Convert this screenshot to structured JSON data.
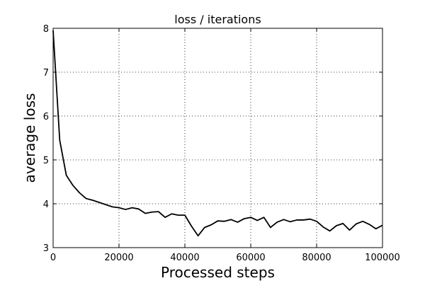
{
  "chart_data": {
    "type": "line",
    "title": "loss / iterations",
    "xlabel": "Processed steps",
    "ylabel": "average loss",
    "xlim": [
      0,
      100000
    ],
    "ylim": [
      3,
      8
    ],
    "xticks": [
      0,
      20000,
      40000,
      60000,
      80000,
      100000
    ],
    "xtick_labels": [
      "0",
      "20000",
      "40000",
      "60000",
      "80000",
      "100000"
    ],
    "yticks": [
      3,
      4,
      5,
      6,
      7,
      8
    ],
    "ytick_labels": [
      "3",
      "4",
      "5",
      "6",
      "7",
      "8"
    ],
    "grid": true,
    "line_color": "#000000",
    "series": [
      {
        "x": [
          0,
          2000,
          4000,
          6000,
          8000,
          10000,
          12000,
          14000,
          16000,
          18000,
          20000,
          22000,
          24000,
          26000,
          28000,
          30000,
          32000,
          34000,
          36000,
          38000,
          40000,
          42000,
          44000,
          46000,
          48000,
          50000,
          52000,
          54000,
          56000,
          58000,
          60000,
          62000,
          64000,
          66000,
          68000,
          70000,
          72000,
          74000,
          76000,
          78000,
          80000,
          82000,
          84000,
          86000,
          88000,
          90000,
          92000,
          94000,
          96000,
          98000,
          100000
        ],
        "y": [
          7.95,
          5.45,
          4.65,
          4.42,
          4.25,
          4.12,
          4.08,
          4.03,
          3.98,
          3.93,
          3.91,
          3.87,
          3.91,
          3.88,
          3.78,
          3.81,
          3.82,
          3.69,
          3.77,
          3.74,
          3.74,
          3.49,
          3.27,
          3.46,
          3.52,
          3.61,
          3.6,
          3.64,
          3.58,
          3.66,
          3.69,
          3.62,
          3.69,
          3.46,
          3.58,
          3.64,
          3.59,
          3.63,
          3.63,
          3.65,
          3.6,
          3.47,
          3.38,
          3.5,
          3.55,
          3.4,
          3.54,
          3.6,
          3.53,
          3.43,
          3.51
        ]
      }
    ]
  }
}
